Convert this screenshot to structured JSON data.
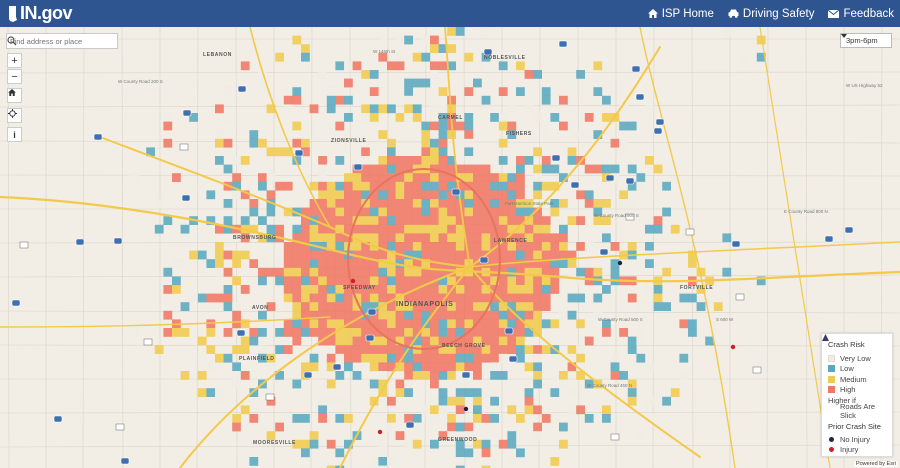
{
  "header": {
    "logo_text": "IN.gov",
    "nav": [
      {
        "label": "ISP Home",
        "icon": "home-icon"
      },
      {
        "label": "Driving Safety",
        "icon": "car-icon"
      },
      {
        "label": "Feedback",
        "icon": "envelope-icon"
      }
    ]
  },
  "search": {
    "placeholder": "Find address or place"
  },
  "time_select": {
    "value": "3pm-6pm"
  },
  "legend": {
    "title": "Crash Risk",
    "items": [
      {
        "label": "Very Low",
        "color": "#f0ece4"
      },
      {
        "label": "Low",
        "color": "#5aa8c0"
      },
      {
        "label": "Medium",
        "color": "#f0cc4e"
      },
      {
        "label": "High",
        "color": "#f07865"
      }
    ],
    "slick_label_1": "Higher if",
    "slick_label_2": "Roads Are Slick",
    "prior_title": "Prior Crash Site",
    "prior_items": [
      {
        "label": "No Injury",
        "color": "#222244"
      },
      {
        "label": "Injury",
        "color": "#cc1f2a"
      }
    ]
  },
  "map_labels": {
    "cities": [
      "NOBLESVILLE",
      "CARMEL",
      "FISHERS",
      "ZIONSVILLE",
      "LAWRENCE",
      "BROWNSBURG",
      "SPEEDWAY",
      "INDIANAPOLIS",
      "AVON",
      "BEECH GROVE",
      "PLAINFIELD",
      "GREENWOOD",
      "MOORESVILLE",
      "FORTVILLE",
      "LEBANON"
    ],
    "roads": [
      "W 146th St",
      "W County Road 200 S",
      "W County Road 900 S",
      "W County Road 500 S",
      "S 600 W",
      "W County Road 450 N",
      "E County Road 800 N",
      "W US Highway 52",
      "Fort Harrison State Park"
    ]
  },
  "attribution": "Powered by Esri"
}
